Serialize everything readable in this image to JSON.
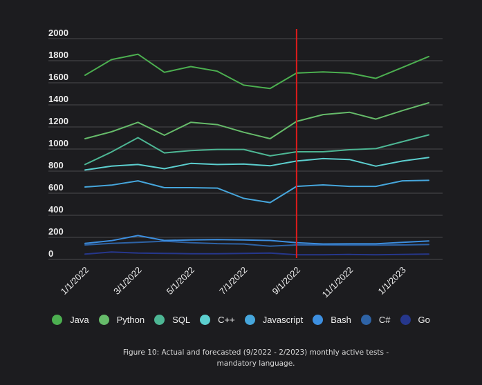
{
  "chart_data": {
    "type": "line",
    "title": "",
    "xlabel": "",
    "ylabel": "",
    "ylim": [
      0,
      2000
    ],
    "yticks": [
      0,
      200,
      400,
      600,
      800,
      1000,
      1200,
      1400,
      1600,
      1800,
      2000
    ],
    "grid": true,
    "legend_position": "bottom",
    "x": [
      "1/1/2022",
      "2/1/2022",
      "3/1/2022",
      "4/1/2022",
      "5/1/2022",
      "6/1/2022",
      "7/1/2022",
      "8/1/2022",
      "9/1/2022",
      "10/1/2022",
      "11/1/2022",
      "12/1/2022",
      "1/1/2023",
      "2/1/2023"
    ],
    "xtick_labels": [
      "1/1/2022",
      "3/1/2022",
      "5/1/2022",
      "7/1/2022",
      "9/1/2022",
      "11/1/2022",
      "1/1/2023"
    ],
    "forecast_marker": {
      "x": "9/1/2022",
      "color": "#e01b1b"
    },
    "series": [
      {
        "name": "Java",
        "color": "#4caf50",
        "values": [
          1669,
          1810,
          1859,
          1695,
          1747,
          1705,
          1579,
          1548,
          1688,
          1699,
          1688,
          1640,
          1739,
          1838
        ]
      },
      {
        "name": "Python",
        "color": "#66bb6a",
        "values": [
          1094,
          1156,
          1242,
          1125,
          1242,
          1221,
          1152,
          1094,
          1250,
          1312,
          1333,
          1271,
          1348,
          1419
        ]
      },
      {
        "name": "SQL",
        "color": "#4db694",
        "values": [
          860,
          973,
          1103,
          965,
          986,
          996,
          996,
          938,
          975,
          975,
          994,
          1004,
          1066,
          1128
        ]
      },
      {
        "name": "C++",
        "color": "#5ccfcf",
        "values": [
          810,
          845,
          860,
          822,
          870,
          860,
          864,
          848,
          891,
          913,
          905,
          845,
          891,
          924
        ]
      },
      {
        "name": "Javascript",
        "color": "#46a6dc",
        "values": [
          656,
          673,
          712,
          650,
          650,
          646,
          553,
          515,
          662,
          675,
          662,
          662,
          712,
          716
        ]
      },
      {
        "name": "Bash",
        "color": "#3d8fe0",
        "values": [
          145,
          170,
          216,
          172,
          176,
          180,
          176,
          172,
          152,
          140,
          141,
          141,
          155,
          167
        ]
      },
      {
        "name": "C#",
        "color": "#2e63a6",
        "values": [
          131,
          145,
          155,
          165,
          152,
          143,
          140,
          120,
          131,
          131,
          130,
          130,
          131,
          135
        ]
      },
      {
        "name": "Go",
        "color": "#26378c",
        "values": [
          48,
          67,
          58,
          55,
          52,
          52,
          55,
          58,
          42,
          42,
          45,
          42,
          45,
          48
        ]
      }
    ]
  },
  "caption": "Figure 10: Actual and forecasted (9/2022 - 2/2023) monthly active tests - mandatory language."
}
